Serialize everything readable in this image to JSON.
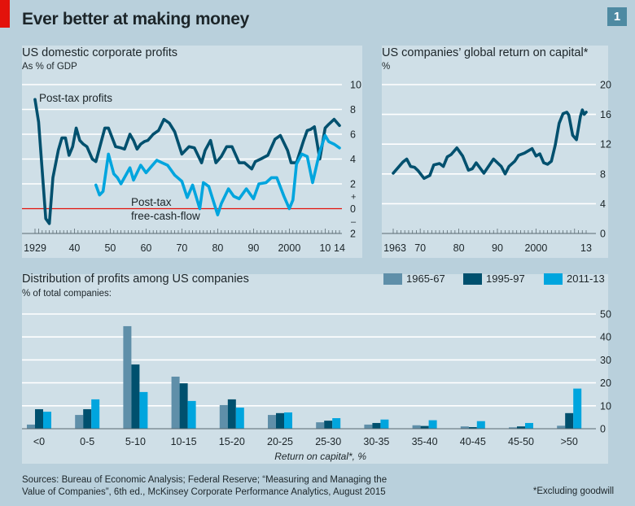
{
  "header": {
    "title": "Ever better at making money",
    "chart_number": "1",
    "accent_color": "#e3120b"
  },
  "footer": {
    "sources_line1": "Sources: Bureau of Economic Analysis; Federal Reserve; “Measuring and Managing the",
    "sources_line2": "Value of Companies”, 6th ed., McKinsey Corporate Performance Analytics, August 2015",
    "footnote": "*Excluding goodwill"
  },
  "chart_data": [
    {
      "type": "line",
      "title": "US domestic corporate profits",
      "subtitle": "As % of GDP",
      "xlim": [
        1929,
        2014
      ],
      "ylim": [
        -2,
        10
      ],
      "yticks": [
        10,
        8,
        6,
        4,
        2,
        0,
        -2
      ],
      "ytick_labels": [
        "10",
        "8",
        "6",
        "4",
        "2",
        "0",
        "2"
      ],
      "sign_labels": [
        "+",
        "–"
      ],
      "xticks": [
        1929,
        1940,
        1950,
        1960,
        1970,
        1980,
        1990,
        2000,
        2010,
        2014
      ],
      "xtick_labels": [
        "1929",
        "40",
        "50",
        "60",
        "70",
        "80",
        "90",
        "2000",
        "10",
        "14"
      ],
      "grid": true,
      "reference_line": {
        "value": 0,
        "color": "#e3120b"
      },
      "series": [
        {
          "name": "Post-tax profits",
          "color": "#00506e",
          "x": [
            1929,
            1930,
            1932,
            1933,
            1934,
            1935.5,
            1936.5,
            1937.5,
            1938.5,
            1939.5,
            1940.5,
            1941.5,
            1942.5,
            1943.5,
            1945,
            1946,
            1948.5,
            1949.5,
            1951.5,
            1953,
            1954,
            1955.5,
            1956.5,
            1957.5,
            1958.5,
            1959.5,
            1960.5,
            1962,
            1963.5,
            1965,
            1966.5,
            1968,
            1970,
            1972,
            1973.5,
            1975.5,
            1976.5,
            1978,
            1979.5,
            1981,
            1982.5,
            1984,
            1986,
            1987.5,
            1989.5,
            1990.5,
            1992,
            1994,
            1996,
            1997.5,
            1999.5,
            2000.5,
            2002,
            2004,
            2005,
            2006,
            2007,
            2008.5,
            2010,
            2011,
            2012.5,
            2014
          ],
          "values": [
            8.8,
            7.0,
            -0.8,
            -1.2,
            2.5,
            4.7,
            5.7,
            5.7,
            4.3,
            5.0,
            6.5,
            5.5,
            5.2,
            5.0,
            4.0,
            3.8,
            6.5,
            6.5,
            5.0,
            4.9,
            4.8,
            6.0,
            5.5,
            4.8,
            5.2,
            5.4,
            5.5,
            6.0,
            6.3,
            7.2,
            6.9,
            6.2,
            4.4,
            5.0,
            4.9,
            3.7,
            4.7,
            5.5,
            3.7,
            4.2,
            5.0,
            5.0,
            3.7,
            3.7,
            3.2,
            3.8,
            4.0,
            4.3,
            5.6,
            5.9,
            4.7,
            3.7,
            3.7,
            5.5,
            6.3,
            6.4,
            6.6,
            4.0,
            6.5,
            6.8,
            7.2,
            6.7
          ]
        },
        {
          "name": "Post-tax free-cash-flow",
          "color": "#00a5de",
          "x": [
            1946,
            1947,
            1948,
            1949.5,
            1951,
            1952,
            1953,
            1955.5,
            1956.5,
            1958.5,
            1960,
            1961.5,
            1963,
            1964.5,
            1966,
            1968,
            1970,
            1971.5,
            1973,
            1975,
            1976,
            1977.5,
            1980,
            1981,
            1983,
            1984.5,
            1986,
            1988,
            1990,
            1991.5,
            1993.5,
            1995,
            1996.5,
            1998.5,
            2000,
            2001,
            2002,
            2003.5,
            2005,
            2006.5,
            2008.5,
            2010,
            2011,
            2012.5,
            2014
          ],
          "values": [
            1.9,
            1.1,
            1.4,
            4.4,
            2.8,
            2.5,
            2.0,
            3.3,
            2.3,
            3.5,
            2.9,
            3.4,
            3.9,
            3.7,
            3.5,
            2.7,
            2.2,
            0.9,
            1.9,
            0.0,
            2.1,
            1.8,
            -0.5,
            0.4,
            1.6,
            1.0,
            0.8,
            1.6,
            0.8,
            2.0,
            2.1,
            2.5,
            2.5,
            1.0,
            0.0,
            0.7,
            3.6,
            4.4,
            4.2,
            2.1,
            4.6,
            5.9,
            5.4,
            5.2,
            4.9
          ]
        }
      ]
    },
    {
      "type": "line",
      "title": "US companies’ global return on capital*",
      "subtitle": "%",
      "xlim": [
        1963,
        2013
      ],
      "ylim": [
        0,
        20
      ],
      "yticks": [
        20,
        16,
        12,
        8,
        4,
        0
      ],
      "ytick_labels": [
        "20",
        "16",
        "12",
        "8",
        "4",
        "0"
      ],
      "xticks": [
        1963,
        1970,
        1980,
        1990,
        2000,
        2013
      ],
      "xtick_labels": [
        "1963",
        "70",
        "80",
        "90",
        "2000",
        "13"
      ],
      "grid": true,
      "series": [
        {
          "name": "Return on capital",
          "color": "#00506e",
          "x": [
            1963,
            1965.5,
            1966.5,
            1967.5,
            1968.5,
            1969.5,
            1971,
            1972.5,
            1973.5,
            1975,
            1976,
            1977,
            1978,
            1979.5,
            1981,
            1982.5,
            1983.5,
            1984.5,
            1986.5,
            1989,
            1991,
            1992,
            1993,
            1994.5,
            1995.5,
            1997,
            1998,
            1999,
            2000,
            2001,
            2002,
            2003,
            2004,
            2005,
            2006,
            2007,
            2008,
            2008.5,
            2009.5,
            2010.5,
            2011.5,
            2012,
            2012.5,
            2013
          ],
          "values": [
            8.1,
            9.6,
            10.0,
            9.0,
            8.9,
            8.4,
            7.4,
            7.8,
            9.2,
            9.4,
            9.0,
            10.3,
            10.6,
            11.5,
            10.4,
            8.5,
            8.7,
            9.5,
            8.1,
            10.0,
            9.0,
            8.0,
            9.0,
            9.7,
            10.5,
            10.8,
            11.1,
            11.4,
            10.4,
            10.7,
            9.5,
            9.3,
            9.7,
            11.9,
            14.8,
            16.1,
            16.3,
            15.9,
            13.2,
            12.6,
            15.7,
            16.6,
            16.0,
            16.3
          ]
        }
      ]
    },
    {
      "type": "bar",
      "title": "Distribution of profits among US companies",
      "subtitle": "% of total companies:",
      "xlabel": "Return on capital*, %",
      "ylabel": "",
      "ylim": [
        0,
        50
      ],
      "yticks": [
        50,
        40,
        30,
        20,
        10,
        0
      ],
      "grid": true,
      "legend": "top-right",
      "categories": [
        "<0",
        "0-5",
        "5-10",
        "10-15",
        "15-20",
        "20-25",
        "25-30",
        "30-35",
        "35-40",
        "40-45",
        "45-50",
        ">50"
      ],
      "series": [
        {
          "name": "1965-67",
          "color": "#5f8fa9",
          "values": [
            1.8,
            6.0,
            44.7,
            22.7,
            10.3,
            6.0,
            2.8,
            1.8,
            1.5,
            1.0,
            0.6,
            1.3
          ]
        },
        {
          "name": "1995-97",
          "color": "#00506e",
          "values": [
            8.5,
            8.5,
            28.0,
            19.8,
            12.8,
            6.8,
            3.5,
            2.5,
            1.2,
            0.7,
            1.0,
            6.8
          ]
        },
        {
          "name": "2011-13",
          "color": "#00a5de",
          "values": [
            7.4,
            12.8,
            16.0,
            12.1,
            9.2,
            7.1,
            4.6,
            4.0,
            3.7,
            3.3,
            2.5,
            17.5
          ]
        }
      ]
    }
  ]
}
